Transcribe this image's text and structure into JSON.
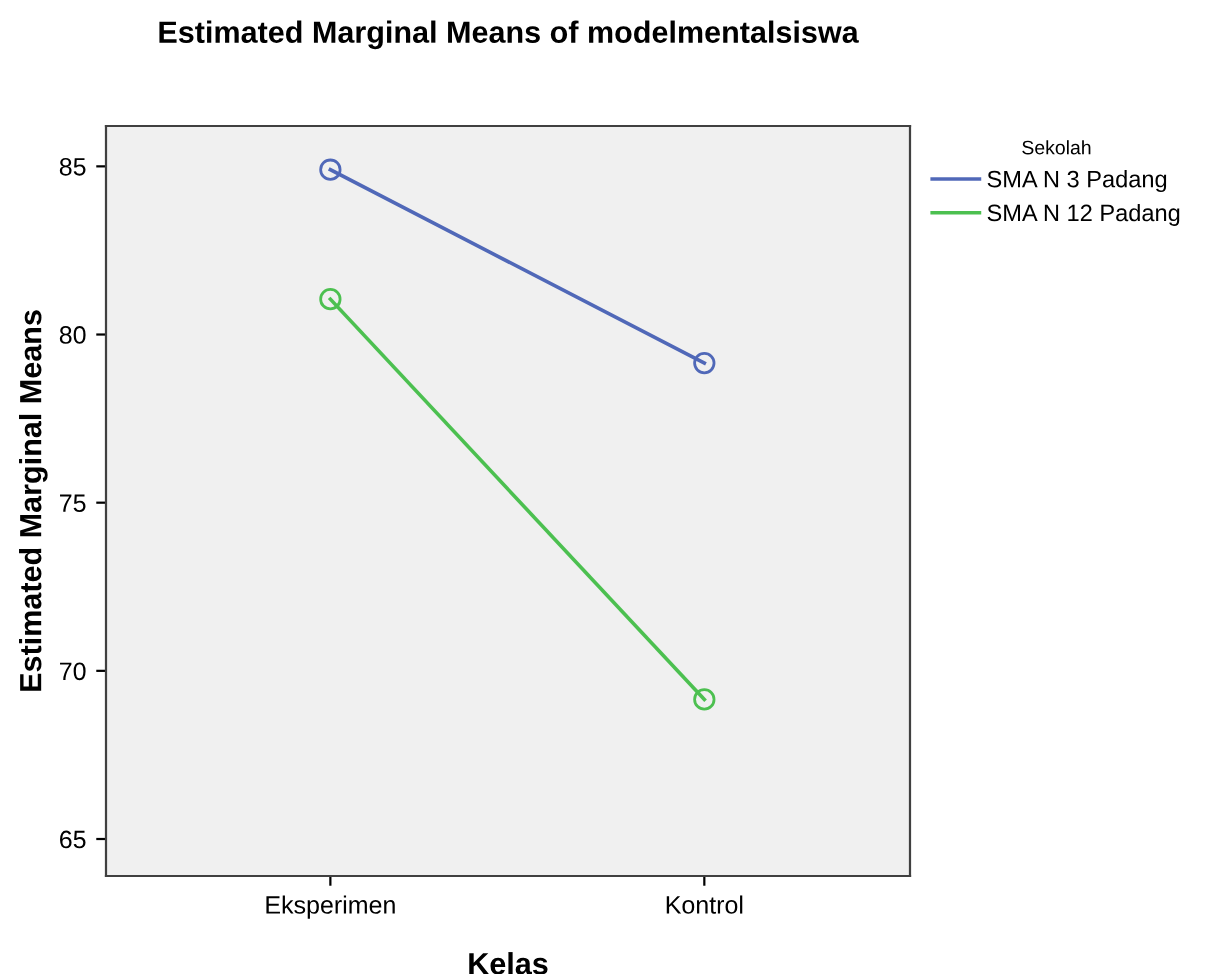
{
  "chart_data": {
    "type": "line",
    "title": "Estimated Marginal Means of modelmentalsiswa",
    "xlabel": "Kelas",
    "ylabel": "Estimated Marginal Means",
    "legend_title": "Sekolah",
    "categories": [
      "Eksperimen",
      "Kontrol"
    ],
    "series": [
      {
        "name": "SMA N 3 Padang",
        "color": "#5068b8",
        "values": [
          84.9,
          79.15
        ]
      },
      {
        "name": "SMA N 12 Padang",
        "color": "#4cc050",
        "values": [
          81.05,
          69.15
        ]
      }
    ],
    "ylim": [
      63.9,
      86.2
    ],
    "yticks": [
      65,
      70,
      75,
      80,
      85
    ],
    "grid": false,
    "legend": "right",
    "marker": "circle",
    "line_style": "solid"
  }
}
